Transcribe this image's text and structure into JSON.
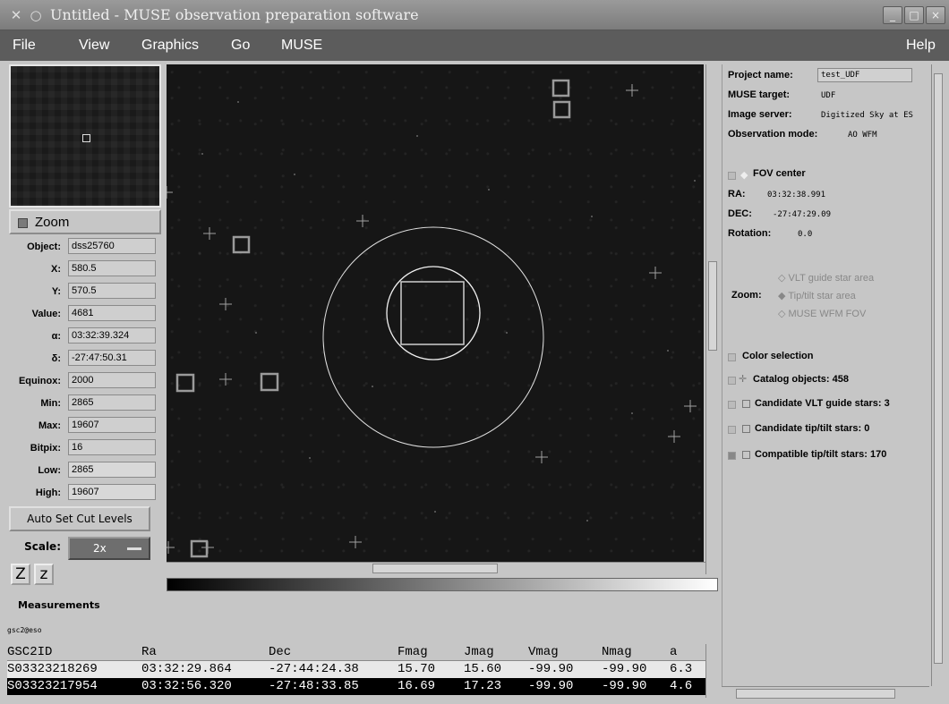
{
  "window": {
    "title": "Untitled - MUSE observation preparation software",
    "controls": [
      "_",
      "□",
      "×"
    ]
  },
  "menu": [
    "File",
    "View",
    "Graphics",
    "Go",
    "MUSE",
    "Help"
  ],
  "left_panel": {
    "zoom_label": "Zoom",
    "fields": [
      {
        "label": "Object:",
        "value": "dss25760"
      },
      {
        "label": "X:",
        "value": "580.5"
      },
      {
        "label": "Y:",
        "value": "570.5"
      },
      {
        "label": "Value:",
        "value": "4681"
      },
      {
        "label": "α:",
        "value": "03:32:39.324"
      },
      {
        "label": "δ:",
        "value": "-27:47:50.31"
      },
      {
        "label": "Equinox:",
        "value": "2000"
      },
      {
        "label": "Min:",
        "value": "2865"
      },
      {
        "label": "Max:",
        "value": "19607"
      },
      {
        "label": "Bitpix:",
        "value": "16"
      },
      {
        "label": "Low:",
        "value": "2865"
      },
      {
        "label": "High:",
        "value": "19607"
      }
    ],
    "auto_set_label": "Auto Set Cut Levels",
    "scale_label": "Scale:",
    "scale_value": "2x",
    "zoom_buttons": [
      "Z",
      "z"
    ]
  },
  "right_panel": {
    "project_name_label": "Project name:",
    "project_name": "test_UDF",
    "muse_target_label": "MUSE target:",
    "muse_target": "UDF",
    "image_server_label": "Image server:",
    "image_server": "Digitized Sky at ES",
    "obs_mode_label": "Observation mode:",
    "obs_mode": "AO WFM",
    "fov_center": "FOV center",
    "ra_label": "RA:",
    "ra": "03:32:38.991",
    "dec_label": "DEC:",
    "dec": "-27:47:29.09",
    "rotation_label": "Rotation:",
    "rotation": "0.0",
    "zoom_label": "Zoom:",
    "zoom_options": [
      "VLT guide star area",
      "Tip/tilt star area",
      "MUSE WFM FOV"
    ],
    "color_selection": "Color selection",
    "catalog_items": [
      "Catalog objects: 458",
      "Candidate VLT guide stars: 3",
      "Candidate tip/tilt stars: 0",
      "Compatible tip/tilt stars: 170"
    ]
  },
  "measurements": {
    "title": "Measurements",
    "catalog": "gsc2@eso",
    "columns": [
      "GSC2ID",
      "Ra",
      "Dec",
      "Fmag",
      "Jmag",
      "Vmag",
      "Nmag",
      "a"
    ],
    "rows": [
      [
        "S03323218269",
        "03:32:29.864",
        "-27:44:24.38",
        "15.70",
        "15.60",
        "-99.90",
        "-99.90",
        "6.3"
      ],
      [
        "S03323217954",
        "03:32:56.320",
        "-27:48:33.85",
        "16.69",
        "17.23",
        "-99.90",
        "-99.90",
        "4.6"
      ]
    ]
  }
}
